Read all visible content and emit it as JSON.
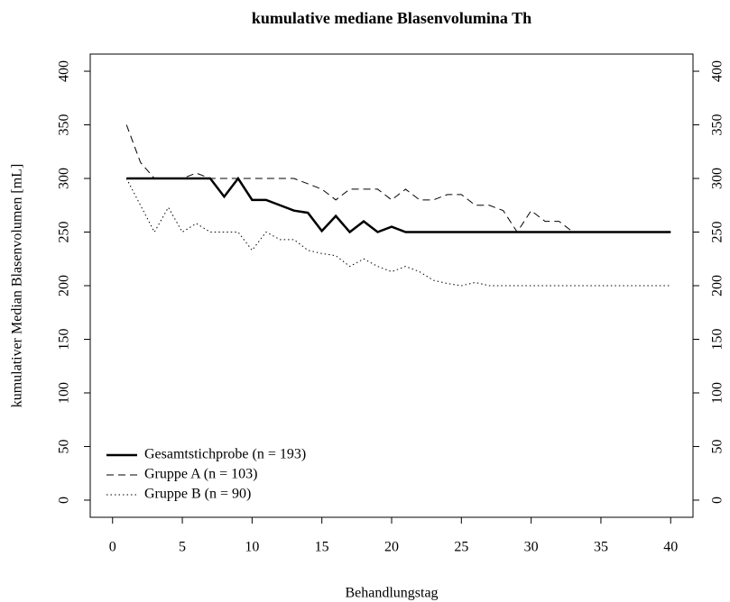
{
  "chart_data": {
    "type": "line",
    "title": "kumulative mediane Blasenvolumina Th",
    "x_label": "Behandlungstag",
    "y_label": "kumulativer Median Blasenvolumen [mL]",
    "x": [
      1,
      2,
      3,
      4,
      5,
      6,
      7,
      8,
      9,
      10,
      11,
      12,
      13,
      14,
      15,
      16,
      17,
      18,
      19,
      20,
      21,
      22,
      23,
      24,
      25,
      26,
      27,
      28,
      29,
      30,
      31,
      32,
      33,
      34,
      35,
      36,
      37,
      38,
      39,
      40
    ],
    "series": [
      {
        "name": "Gesamtstichprobe (n = 193)",
        "color": "#000000",
        "dash": "solid",
        "width": 2.5,
        "values": [
          300,
          300,
          300,
          300,
          300,
          300,
          300,
          283,
          300,
          280,
          280,
          275,
          270,
          268,
          251,
          265,
          250,
          260,
          250,
          255,
          250,
          250,
          250,
          250,
          250,
          250,
          250,
          250,
          250,
          250,
          250,
          250,
          250,
          250,
          250,
          250,
          250,
          250,
          250,
          250
        ]
      },
      {
        "name": "Gruppe A (n = 103)",
        "color": "#000000",
        "dash": "dashed",
        "width": 1,
        "values": [
          350,
          315,
          300,
          300,
          300,
          305,
          300,
          300,
          300,
          300,
          300,
          300,
          300,
          295,
          290,
          280,
          290,
          290,
          290,
          280,
          290,
          280,
          280,
          285,
          285,
          275,
          275,
          270,
          250,
          270,
          260,
          260,
          250,
          250,
          250,
          250,
          250,
          250,
          250,
          250
        ]
      },
      {
        "name": "Gruppe B (n = 90)",
        "color": "#000000",
        "dash": "dotted",
        "width": 1,
        "values": [
          300,
          275,
          250,
          273,
          250,
          258,
          250,
          250,
          250,
          233,
          250,
          243,
          243,
          233,
          230,
          228,
          218,
          225,
          218,
          213,
          218,
          213,
          205,
          202,
          200,
          203,
          200,
          200,
          200,
          200,
          200,
          200,
          200,
          200,
          200,
          200,
          200,
          200,
          200,
          200
        ]
      }
    ],
    "xlim": [
      0,
      40
    ],
    "xticks": [
      0,
      5,
      10,
      15,
      20,
      25,
      30,
      35,
      40
    ],
    "ylim": [
      0,
      400
    ],
    "yticks": [
      0,
      50,
      100,
      150,
      200,
      250,
      300,
      350,
      400
    ],
    "right_axis": true,
    "legend": "bottom-left"
  }
}
